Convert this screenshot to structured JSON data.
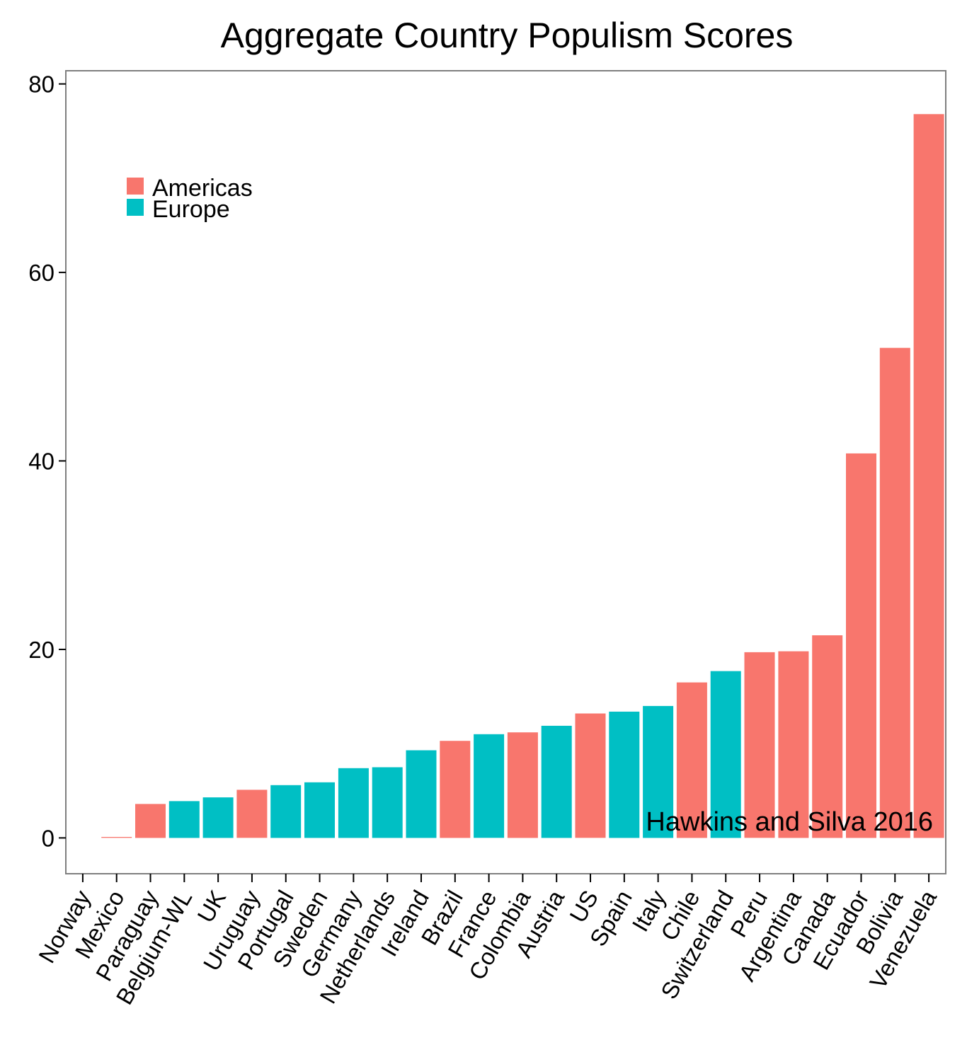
{
  "chart_data": {
    "type": "bar",
    "title": "Aggregate Country Populism Scores",
    "xlabel": "",
    "ylabel": "",
    "ylim": [
      -3.8,
      81.4
    ],
    "yticks": [
      0,
      20,
      40,
      60,
      80
    ],
    "grid": false,
    "legend_position": "top-left",
    "annotation": "Hawkins and Silva 2016",
    "legend": [
      {
        "name": "Americas",
        "color": "#F8766D"
      },
      {
        "name": "Europe",
        "color": "#00BFC4"
      }
    ],
    "categories": [
      "Norway",
      "Mexico",
      "Paraguay",
      "Belgium-WL",
      "UK",
      "Uruguay",
      "Portugal",
      "Sweden",
      "Germany",
      "Netherlands",
      "Ireland",
      "Brazil",
      "France",
      "Colombia",
      "Austria",
      "US",
      "Spain",
      "Italy",
      "Chile",
      "Switzerland",
      "Peru",
      "Argentina",
      "Canada",
      "Ecuador",
      "Bolivia",
      "Venezuela"
    ],
    "region": [
      "Europe",
      "Americas",
      "Americas",
      "Europe",
      "Europe",
      "Americas",
      "Europe",
      "Europe",
      "Europe",
      "Europe",
      "Europe",
      "Americas",
      "Europe",
      "Americas",
      "Europe",
      "Americas",
      "Europe",
      "Europe",
      "Americas",
      "Europe",
      "Americas",
      "Americas",
      "Americas",
      "Americas",
      "Americas",
      "Americas"
    ],
    "values": [
      0,
      0.1,
      3.6,
      3.9,
      4.3,
      5.1,
      5.6,
      5.9,
      7.4,
      7.5,
      9.3,
      10.3,
      11.0,
      11.2,
      11.9,
      13.2,
      13.4,
      14.0,
      16.5,
      17.7,
      19.7,
      19.8,
      21.5,
      40.8,
      52.0,
      76.8
    ]
  }
}
